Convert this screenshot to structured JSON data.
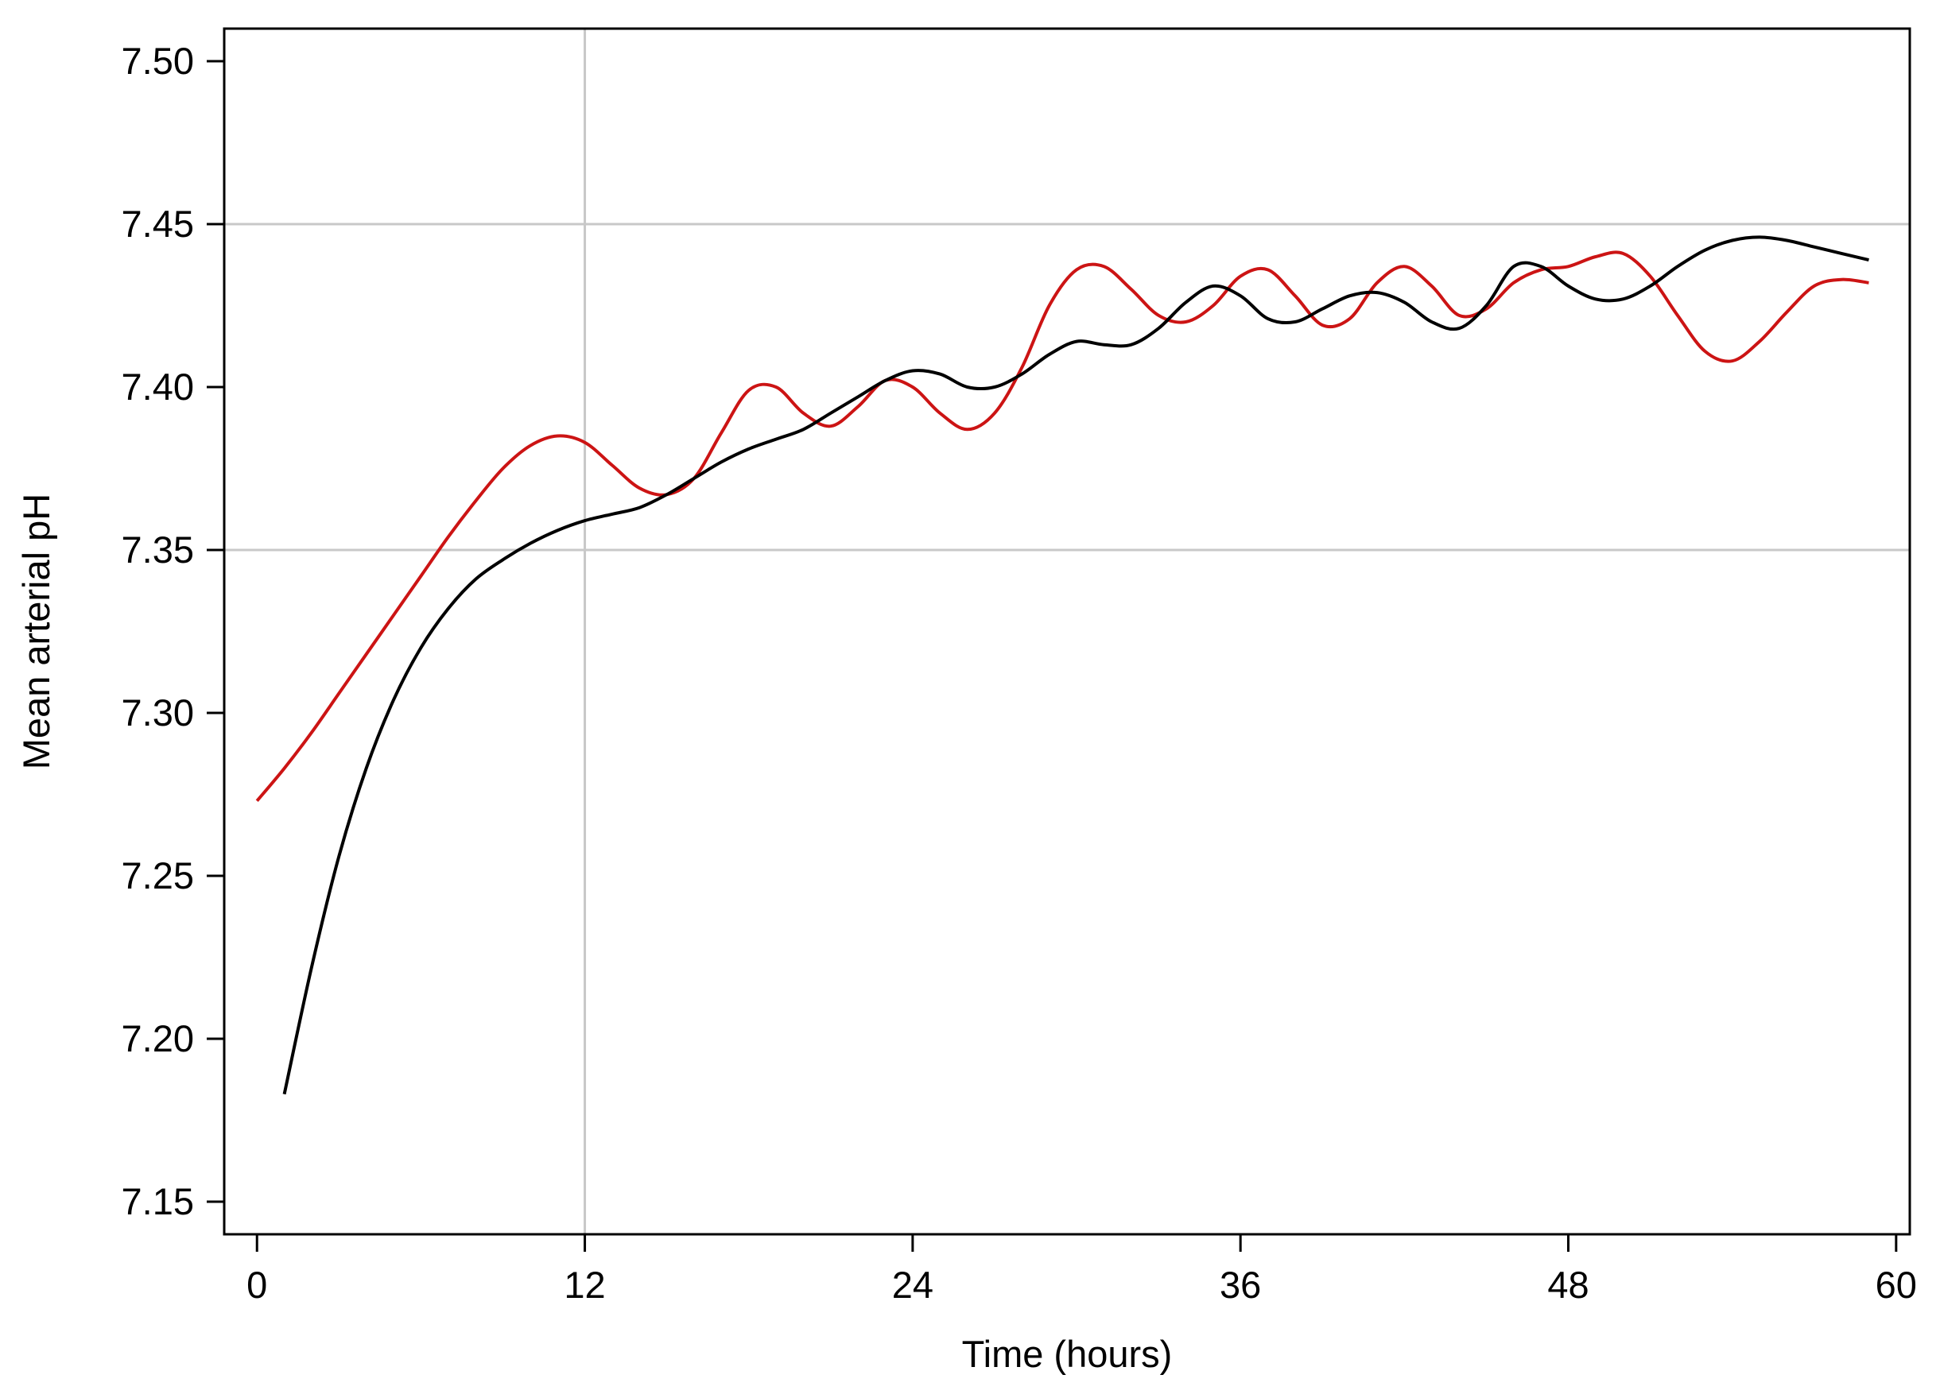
{
  "chart_data": {
    "type": "line",
    "title": "",
    "xlabel": "Time (hours)",
    "ylabel": "Mean arterial pH",
    "xlim": [
      -1.2,
      60.5
    ],
    "ylim": [
      7.14,
      7.51
    ],
    "x_ticks": [
      0,
      12,
      24,
      36,
      48,
      60
    ],
    "x_tick_labels": [
      "0",
      "12",
      "24",
      "36",
      "48",
      "60"
    ],
    "y_ticks": [
      7.15,
      7.2,
      7.25,
      7.3,
      7.35,
      7.4,
      7.45,
      7.5
    ],
    "y_tick_labels": [
      "7.15",
      "7.20",
      "7.25",
      "7.30",
      "7.35",
      "7.40",
      "7.45",
      "7.50"
    ],
    "reference_lines": {
      "x": [
        12
      ],
      "y": [
        7.35,
        7.45
      ]
    },
    "grid": false,
    "legend": "none",
    "colors": {
      "red_series": "#cc1414",
      "black_series": "#000000",
      "reference": "#c8c8c8",
      "axis": "#000000"
    },
    "series": [
      {
        "color": "#cc1414",
        "x": [
          0,
          1,
          2,
          3,
          4,
          5,
          6,
          7,
          8,
          9,
          10,
          11,
          12,
          13,
          14,
          15,
          16,
          17,
          18,
          19,
          20,
          21,
          22,
          23,
          24,
          25,
          26,
          27,
          28,
          29,
          30,
          31,
          32,
          33,
          34,
          35,
          36,
          37,
          38,
          39,
          40,
          41,
          42,
          43,
          44,
          45,
          46,
          47,
          48,
          49,
          50,
          51,
          52,
          53,
          54,
          55,
          56,
          57,
          58,
          59
        ],
        "y": [
          7.273,
          7.283,
          7.294,
          7.306,
          7.318,
          7.33,
          7.342,
          7.354,
          7.365,
          7.375,
          7.382,
          7.385,
          7.383,
          7.376,
          7.369,
          7.367,
          7.372,
          7.386,
          7.399,
          7.4,
          7.392,
          7.388,
          7.394,
          7.402,
          7.4,
          7.392,
          7.387,
          7.392,
          7.406,
          7.425,
          7.436,
          7.437,
          7.43,
          7.422,
          7.42,
          7.425,
          7.434,
          7.436,
          7.428,
          7.419,
          7.421,
          7.432,
          7.437,
          7.431,
          7.422,
          7.424,
          7.432,
          7.436,
          7.437,
          7.44,
          7.441,
          7.434,
          7.422,
          7.411,
          7.408,
          7.414,
          7.423,
          7.431,
          7.433,
          7.432
        ]
      },
      {
        "color": "#000000",
        "x": [
          1,
          2,
          3,
          4,
          5,
          6,
          7,
          8,
          9,
          10,
          11,
          12,
          13,
          14,
          15,
          16,
          17,
          18,
          19,
          20,
          21,
          22,
          23,
          24,
          25,
          26,
          27,
          28,
          29,
          30,
          31,
          32,
          33,
          34,
          35,
          36,
          37,
          38,
          39,
          40,
          41,
          42,
          43,
          44,
          45,
          46,
          47,
          48,
          49,
          50,
          51,
          52,
          53,
          54,
          55,
          56,
          57,
          58,
          59
        ],
        "y": [
          7.183,
          7.222,
          7.256,
          7.283,
          7.304,
          7.32,
          7.332,
          7.341,
          7.347,
          7.352,
          7.356,
          7.359,
          7.361,
          7.363,
          7.367,
          7.372,
          7.377,
          7.381,
          7.384,
          7.387,
          7.392,
          7.397,
          7.402,
          7.405,
          7.404,
          7.4,
          7.4,
          7.404,
          7.41,
          7.414,
          7.413,
          7.413,
          7.418,
          7.426,
          7.431,
          7.428,
          7.421,
          7.42,
          7.424,
          7.428,
          7.429,
          7.426,
          7.42,
          7.418,
          7.425,
          7.437,
          7.437,
          7.431,
          7.427,
          7.427,
          7.431,
          7.437,
          7.442,
          7.445,
          7.446,
          7.445,
          7.443,
          7.441,
          7.439
        ]
      }
    ]
  }
}
